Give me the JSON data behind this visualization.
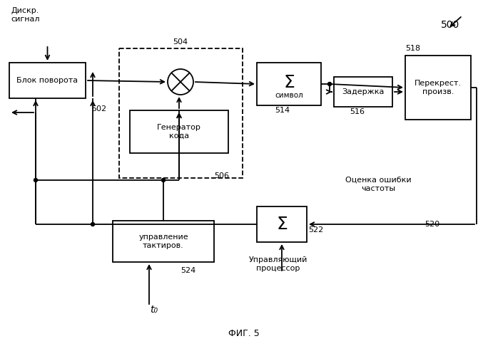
{
  "background_color": "#ffffff",
  "title_bottom": "ФИГ. 5",
  "label_500": "500",
  "label_diskr": "Дискр.\nсигнал",
  "label_blok": "Блок поворота",
  "label_504": "504",
  "label_sum_sym_top": "Σ",
  "label_sum_sym_bot": "символ",
  "label_514": "514",
  "label_zaderjka": "Задержка",
  "label_516": "516",
  "label_518": "518",
  "label_perekr": "Перекрест.\nпроизв.",
  "label_generator": "Генератор\nкода",
  "label_506": "506",
  "label_502": "502",
  "label_522": "522",
  "label_520": "520",
  "label_ocenka": "Оценка ошибки\nчастоты",
  "label_upr_takt": "управление\nтактиров.",
  "label_524": "524",
  "label_t0": "t₀",
  "label_upr_proc": "Управляющий\nпроцессор"
}
